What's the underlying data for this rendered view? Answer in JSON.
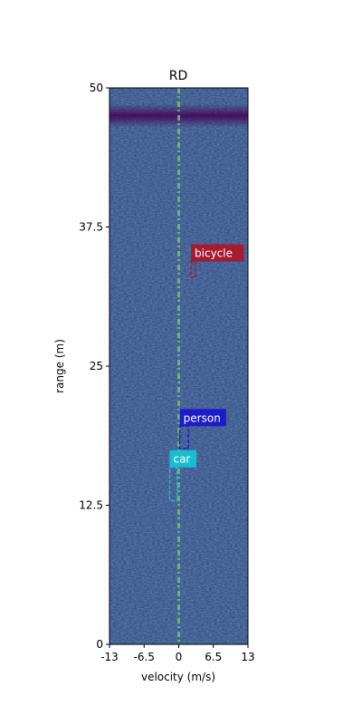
{
  "chart_data": {
    "type": "heatmap",
    "title": "RD",
    "xlabel": "velocity (m/s)",
    "ylabel": "range (m)",
    "xlim": [
      -13,
      13
    ],
    "ylim": [
      0,
      50
    ],
    "xticks": [
      -13,
      -6.5,
      0,
      6.5,
      13
    ],
    "xtick_labels": [
      "-13",
      "-6.5",
      "0",
      "6.5",
      "13"
    ],
    "yticks": [
      0,
      12.5,
      25,
      37.5,
      50
    ],
    "ytick_labels": [
      "0",
      "12.5",
      "25",
      "37.5",
      "50"
    ],
    "colormap": "viridis",
    "background_color": "#3b528b",
    "zero_velocity_line_color": "#7ad151",
    "high_intensity_band_range_m": 47.5,
    "detections": [
      {
        "label": "bicycle",
        "color": "#a51c30",
        "x_min": 2.3,
        "x_max": 3.2,
        "y_min": 33.0,
        "y_max": 34.4
      },
      {
        "label": "person",
        "color": "#1c1cc8",
        "x_min": 0.2,
        "x_max": 1.8,
        "y_min": 17.6,
        "y_max": 19.6
      },
      {
        "label": "car",
        "color": "#17becf",
        "x_min": -1.7,
        "x_max": -0.3,
        "y_min": 12.9,
        "y_max": 15.9
      }
    ]
  }
}
